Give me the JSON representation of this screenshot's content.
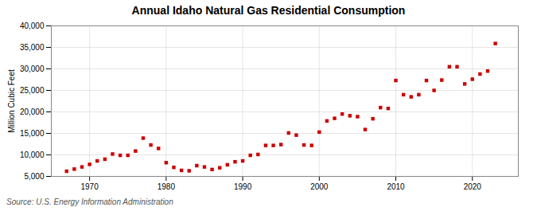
{
  "chart_data": {
    "type": "scatter",
    "title": "Annual Idaho Natural Gas Residential Consumption",
    "ylabel": "Million Cubic Feet",
    "source": "Source: U.S. Energy Information Administration",
    "color": "#cc0000",
    "marker": "square",
    "grid": true,
    "x": [
      1967,
      1968,
      1969,
      1970,
      1971,
      1972,
      1973,
      1974,
      1975,
      1976,
      1977,
      1978,
      1979,
      1980,
      1981,
      1982,
      1983,
      1984,
      1985,
      1986,
      1987,
      1988,
      1989,
      1990,
      1991,
      1992,
      1993,
      1994,
      1995,
      1996,
      1997,
      1998,
      1999,
      2000,
      2001,
      2002,
      2003,
      2004,
      2005,
      2006,
      2007,
      2008,
      2009,
      2010,
      2011,
      2012,
      2013,
      2014,
      2015,
      2016,
      2017,
      2018,
      2019,
      2020,
      2021,
      2022,
      2023
    ],
    "values": [
      6200,
      6700,
      7200,
      7800,
      8600,
      9000,
      10200,
      9900,
      9900,
      10900,
      13900,
      12300,
      11500,
      8200,
      7100,
      6400,
      6300,
      7500,
      7200,
      6600,
      7000,
      7700,
      8400,
      8600,
      9900,
      10100,
      12200,
      12200,
      12400,
      15100,
      14600,
      12300,
      12200,
      15300,
      17900,
      18500,
      19500,
      19100,
      18900,
      15900,
      18400,
      21000,
      20800,
      27300,
      24000,
      23500,
      24000,
      27300,
      25000,
      27400,
      30500,
      30500,
      26500,
      27600,
      28800,
      29500,
      35900
    ],
    "xlim": [
      1965,
      2026
    ],
    "xticks": [
      1970,
      1980,
      1990,
      2000,
      2010,
      2020
    ],
    "ylim": [
      5000,
      40000
    ],
    "yticks": [
      {
        "value": 5000,
        "label": "5,000"
      },
      {
        "value": 10000,
        "label": "10,000"
      },
      {
        "value": 15000,
        "label": "15,000"
      },
      {
        "value": 20000,
        "label": "20,000"
      },
      {
        "value": 25000,
        "label": "25,000"
      },
      {
        "value": 30000,
        "label": "30,000"
      },
      {
        "value": 35000,
        "label": "35,000"
      },
      {
        "value": 40000,
        "label": "40,000"
      }
    ]
  }
}
